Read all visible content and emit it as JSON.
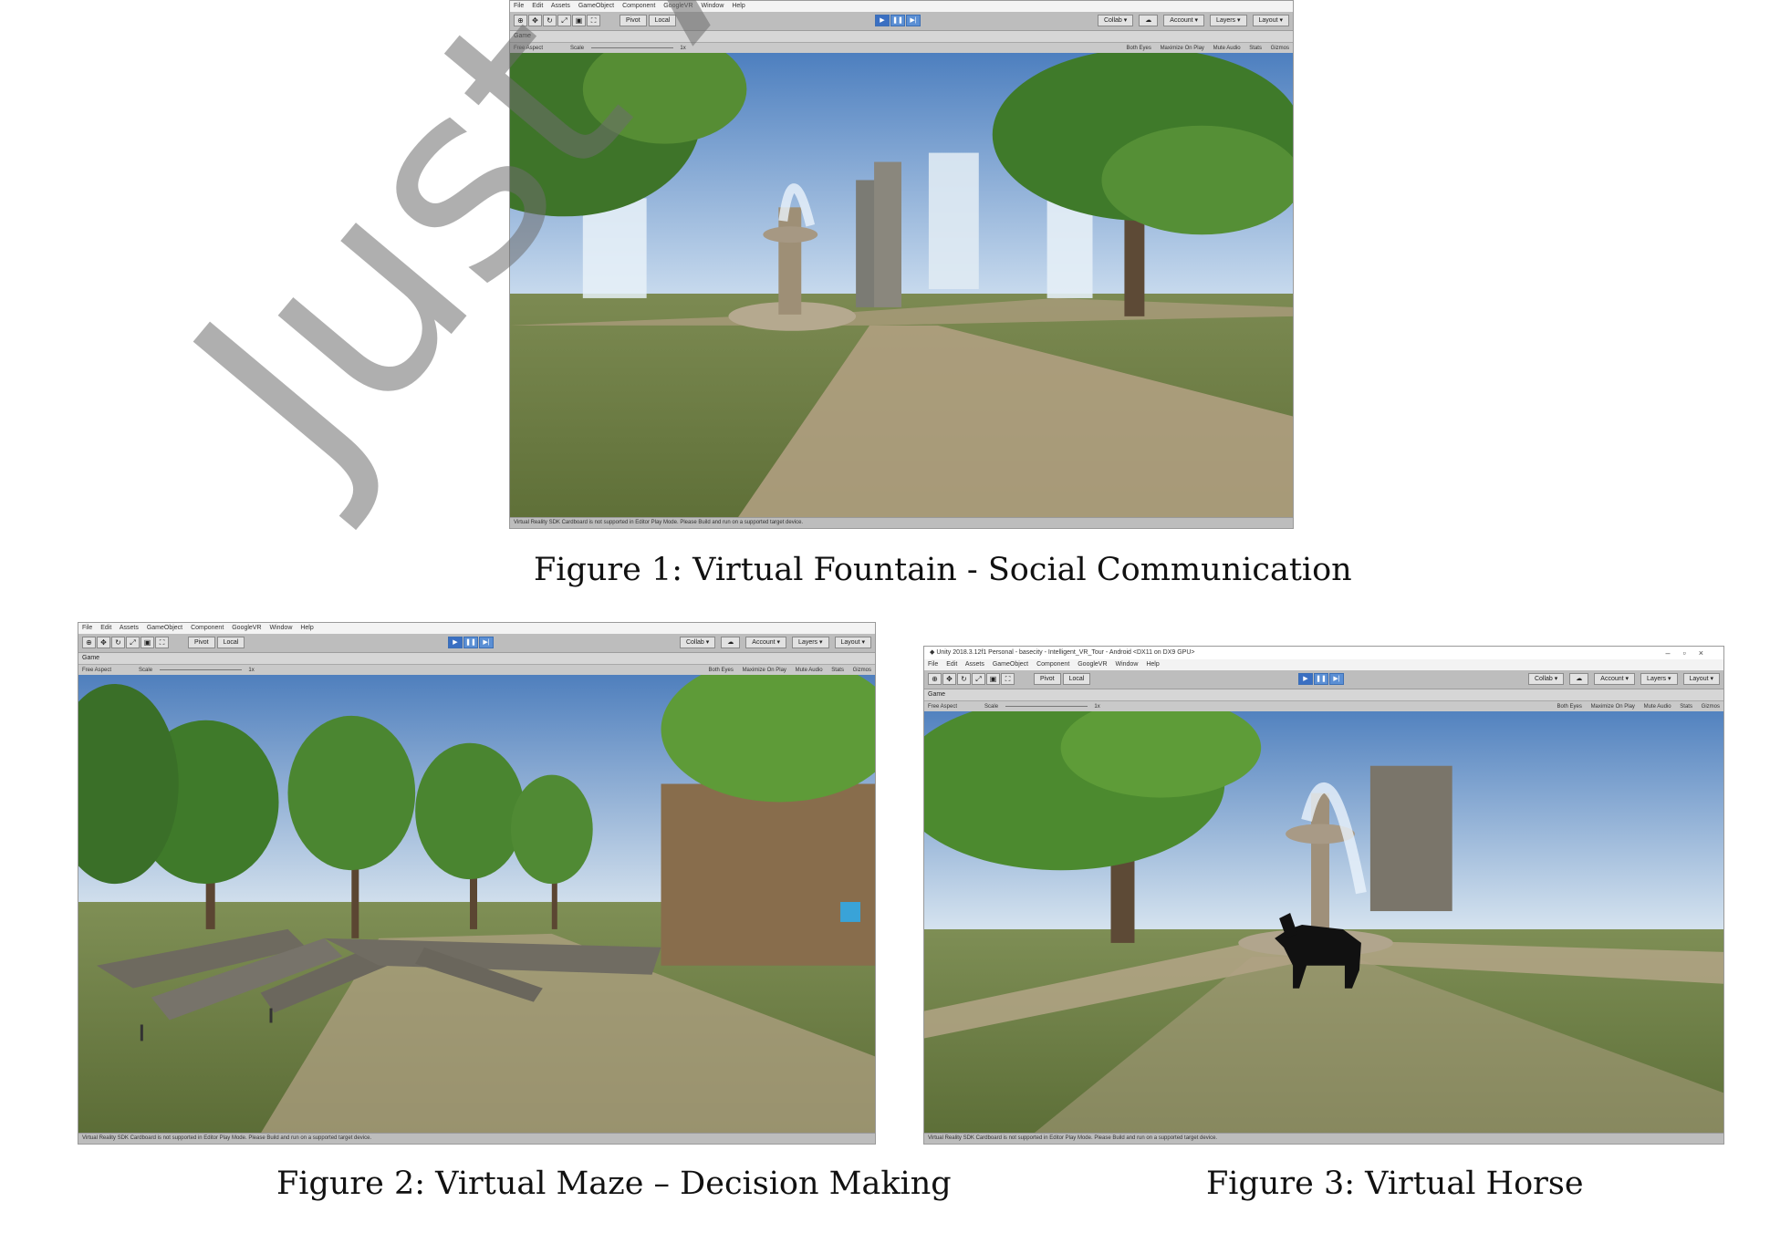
{
  "watermark": "Just Ac",
  "editor": {
    "menu": [
      "File",
      "Edit",
      "Assets",
      "GameObject",
      "Component",
      "GoogleVR",
      "Window",
      "Help"
    ],
    "tools": [
      "⊕",
      "✥",
      "↻",
      "⤢",
      "▣",
      "⛶"
    ],
    "pivot_label": "Pivot",
    "local_label": "Local",
    "play_buttons": [
      "▶",
      "❚❚",
      "▶|"
    ],
    "collab_label": "Collab ▾",
    "cloud_icon": "cloud-icon",
    "account_label": "Account ▾",
    "layers_label": "Layers ▾",
    "layout_label": "Layout ▾",
    "game_tab": "Game",
    "aspect_label": "Free Aspect",
    "scale_label": "Scale",
    "scale_value": "1x",
    "game_options": [
      "Both Eyes",
      "Maximize On Play",
      "Mute Audio",
      "Stats",
      "Gizmos"
    ],
    "status_text": "Virtual Reality SDK Cardboard is not supported in Editor Play Mode. Please Build and run on a supported target device."
  },
  "figure3_window": {
    "title": "Unity 2018.3.12f1 Personal - basecity - Intelligent_VR_Tour - Android <DX11 on DX9 GPU>",
    "controls": [
      "–",
      "▫",
      "×"
    ]
  },
  "captions": {
    "fig1": "Figure 1:  Virtual Fountain   -  Social Communication",
    "fig2": "Figure 2: Virtual Maze – Decision Making",
    "fig3": "Figure 3: Virtual Horse"
  },
  "colors": {
    "sky": "#7fa9d6",
    "grass": "#6f7f45",
    "path": "#b6a58a",
    "foliage": "#4f8a2f",
    "play_button": "#3a6fc2"
  }
}
